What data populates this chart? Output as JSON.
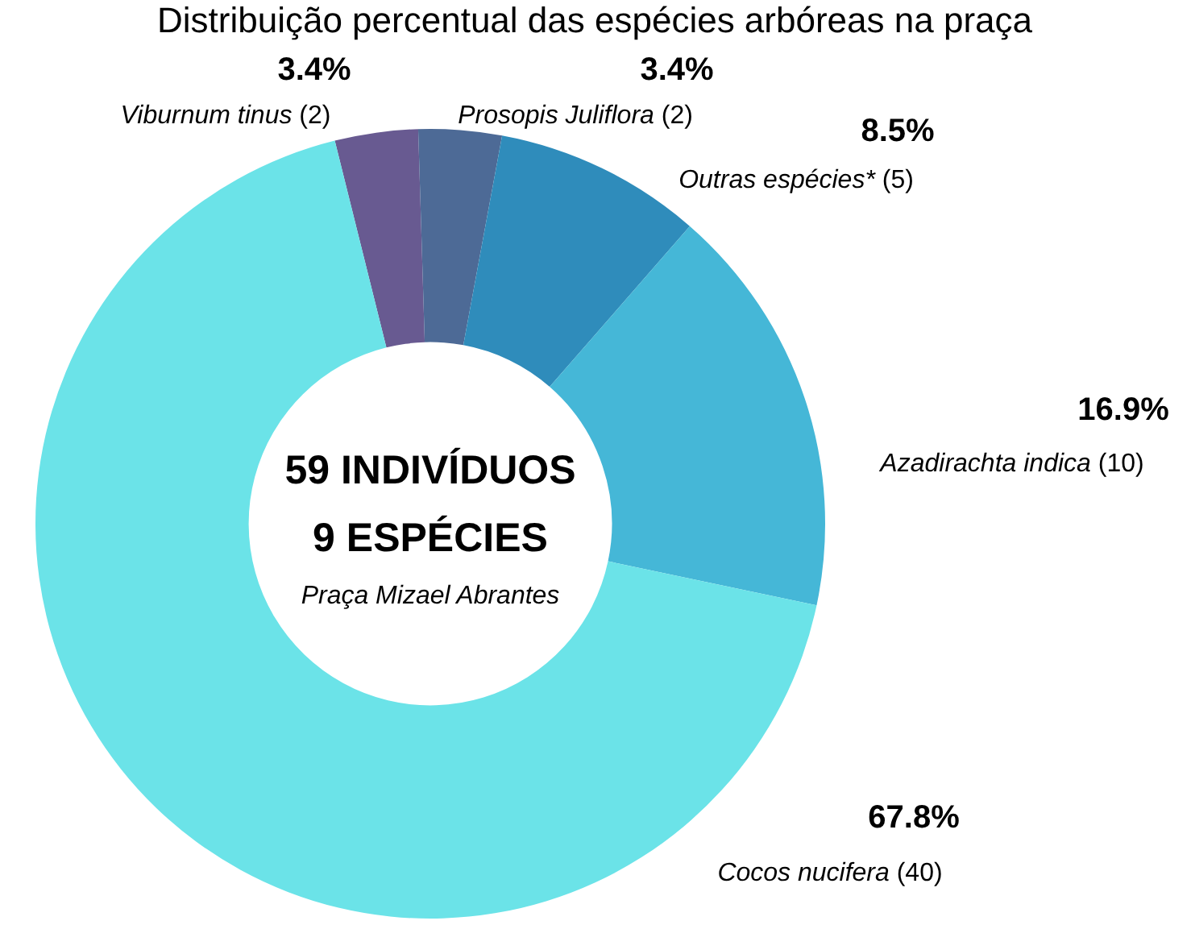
{
  "chart_data": {
    "type": "donut",
    "title": "Distribuição percentual das espécies arbóreas na praça",
    "categories": [
      "Viburnum tinus (2)",
      "Prosopis Juliflora (2)",
      "Outras espécies* (5)",
      "Azadirachta indica (10)",
      "Cocos nucifera (40)"
    ],
    "values": [
      3.4,
      3.4,
      8.5,
      16.9,
      67.8
    ],
    "value_labels": [
      "3.4%",
      "3.4%",
      "8.5%",
      "16.9%",
      "67.8%"
    ],
    "colors": [
      "#685a91",
      "#4d6a96",
      "#2f8cbb",
      "#45b7d7",
      "#6be3e8"
    ],
    "annotations": [
      "59 INDIVÍDUOS",
      "9 ESPÉCIES",
      "Praça Mizael Abrantes"
    ]
  }
}
